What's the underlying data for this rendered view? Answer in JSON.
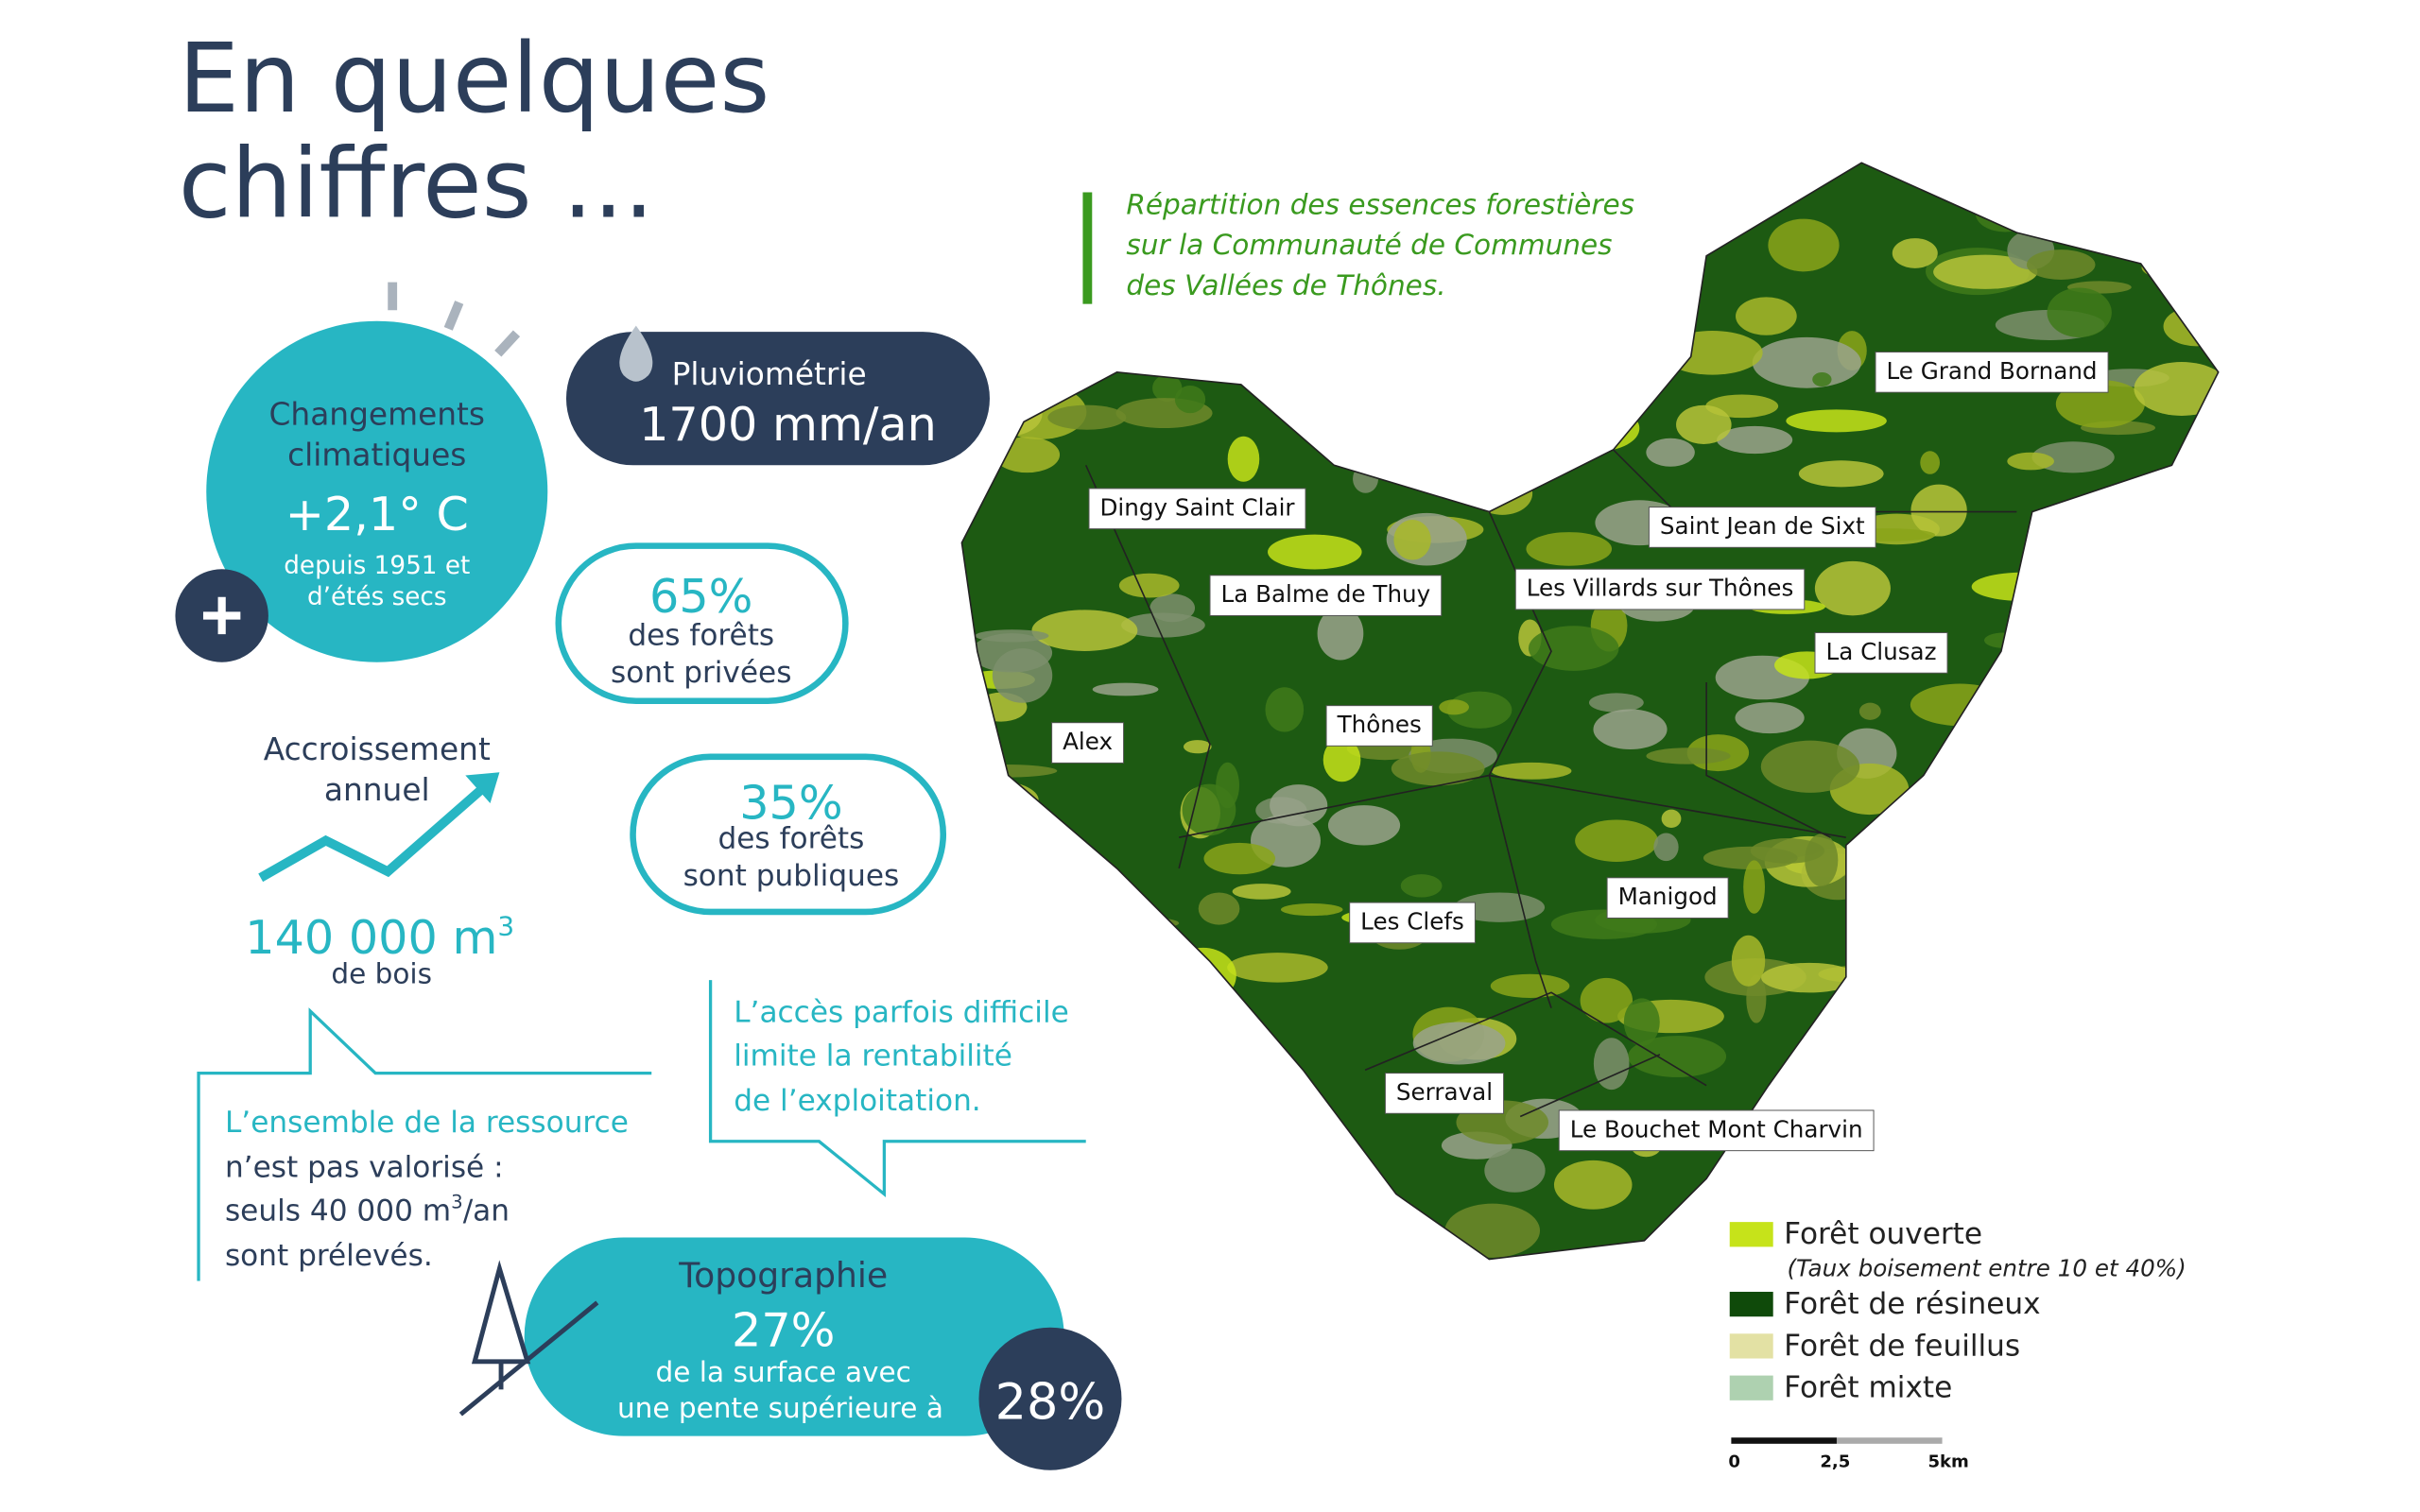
{
  "header": {
    "title_line1": "En quelques",
    "title_line2": "chiffres ..."
  },
  "climate": {
    "title_line1": "Changements",
    "title_line2": "climatiques",
    "value": "+2,1° C",
    "note_line1": "depuis 1951 et",
    "note_line2": "d’étés secs"
  },
  "rain": {
    "label": "Pluviométrie",
    "value": "1700 mm/an"
  },
  "private_forest": {
    "value": "65%",
    "line1": "des forêts",
    "line2": "sont privées"
  },
  "public_forest": {
    "value": "35%",
    "line1": "des forêts",
    "line2": "sont publiques"
  },
  "growth": {
    "title_line1": "Accroissement",
    "title_line2": "annuel",
    "value": "140 000 m",
    "sup": "3",
    "unit": "de bois"
  },
  "callout_left": {
    "line1": "L’ensemble de la ressource",
    "line2": "n’est pas valorisé :",
    "line3_a": "seuls 40 000 m",
    "line3_sup": "3",
    "line3_b": "/an",
    "line4": "sont prélevés."
  },
  "callout_right": {
    "line1": "L’accès parfois difficile",
    "line2": "limite la rentabilité",
    "line3": "de l’exploitation."
  },
  "topography": {
    "title": "Topographie",
    "value": "27%",
    "line1": "de la surface avec",
    "line2": "une pente supérieure à",
    "slope": "28%"
  },
  "map": {
    "caption": [
      "Répartition des essences forestières",
      "sur la Communauté de Communes",
      "des Vallées de Thônes."
    ],
    "communes": [
      "Le Grand Bornand",
      "Dingy Saint Clair",
      "Saint Jean de Sixt",
      "La Balme de Thuy",
      "Les Villards sur Thônes",
      "La Clusaz",
      "Alex",
      "Thônes",
      "Manigod",
      "Les Clefs",
      "Serraval",
      "Le Bouchet Mont Charvin"
    ],
    "legend": [
      {
        "label": "Forêt ouverte",
        "note": "(Taux boisement entre 10 et 40%)",
        "color": "#c6e31a"
      },
      {
        "label": "Forêt de résineux",
        "color": "#0f4a0a"
      },
      {
        "label": "Forêt de feuillus",
        "color": "#e3e1a4"
      },
      {
        "label": "Forêt mixte",
        "color": "#aed1b0"
      }
    ],
    "scale": [
      "0",
      "2,5",
      "5km"
    ]
  }
}
